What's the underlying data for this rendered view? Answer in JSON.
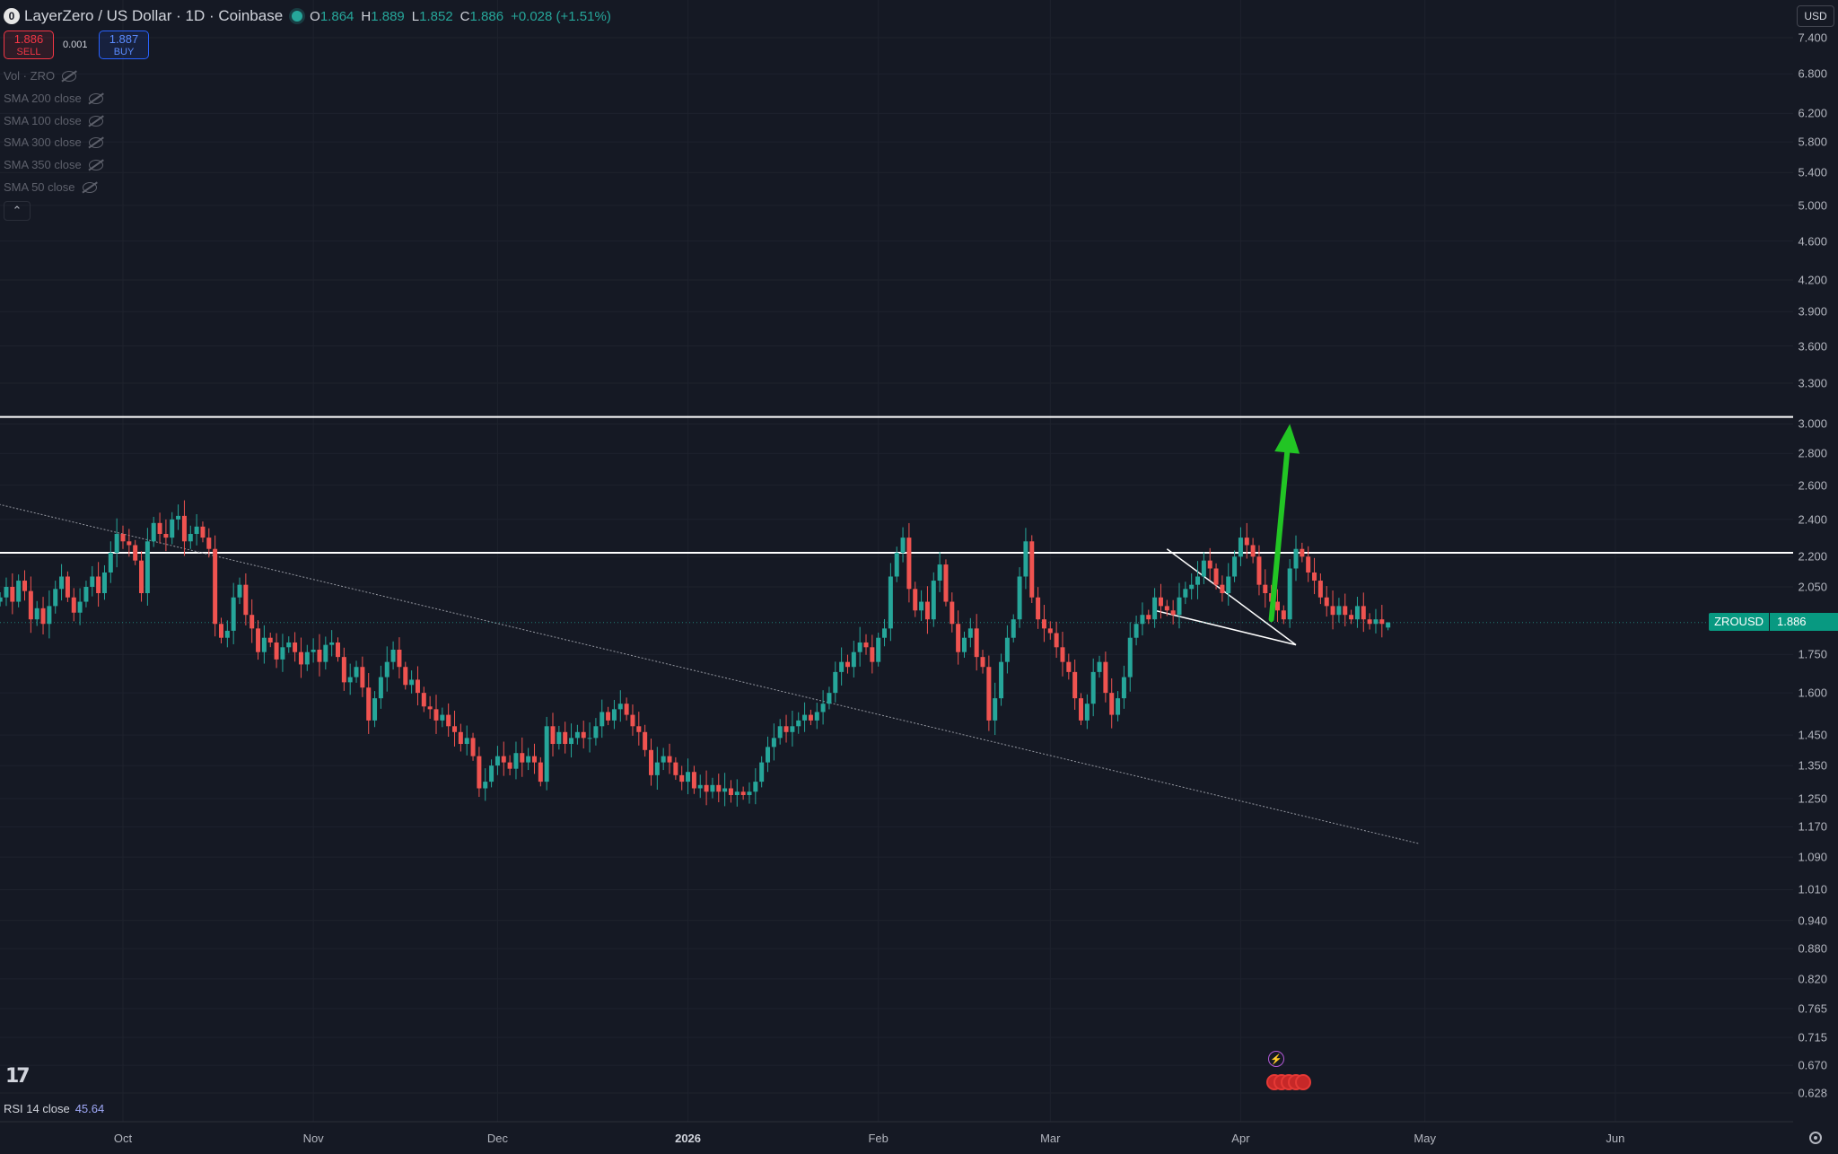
{
  "header": {
    "symbol_logo": "0",
    "title": "LayerZero / US Dollar · 1D · Coinbase",
    "o_label": "O",
    "o": "1.864",
    "h_label": "H",
    "h": "1.889",
    "l_label": "L",
    "l": "1.852",
    "c_label": "C",
    "c": "1.886",
    "change": "+0.028 (+1.51%)"
  },
  "trade": {
    "sell_price": "1.886",
    "sell_label": "SELL",
    "spread": "0.001",
    "buy_price": "1.887",
    "buy_label": "BUY"
  },
  "indicators": [
    {
      "label": "Vol · ZRO"
    },
    {
      "label": "SMA 200 close"
    },
    {
      "label": "SMA 100 close"
    },
    {
      "label": "SMA 300 close"
    },
    {
      "label": "SMA 350 close"
    },
    {
      "label": "SMA 50 close"
    }
  ],
  "collapse_icon": "chevron-up-icon",
  "currency": "USD",
  "price_tag": {
    "symbol": "ZROUSD",
    "price": "1.886"
  },
  "rsi": {
    "label": "RSI 14 close",
    "value": "45.64"
  },
  "colors": {
    "up": "#26a69a",
    "down": "#ef5350",
    "arrow": "#22c524",
    "background": "#151924"
  },
  "chart_data": {
    "type": "candlestick",
    "y_scale": "log",
    "ylim": [
      0.628,
      7.4
    ],
    "y_ticks": [
      "7.400",
      "6.800",
      "6.200",
      "5.800",
      "5.400",
      "5.000",
      "4.600",
      "4.200",
      "3.900",
      "3.600",
      "3.300",
      "3.000",
      "2.800",
      "2.600",
      "2.400",
      "2.200",
      "2.050",
      "1.750",
      "1.600",
      "1.450",
      "1.350",
      "1.250",
      "1.170",
      "1.090",
      "1.010",
      "0.940",
      "0.880",
      "0.820",
      "0.765",
      "0.715",
      "0.670",
      "0.628"
    ],
    "x_ticks": [
      {
        "label": "Oct",
        "date": "2025-10-01"
      },
      {
        "label": "Nov",
        "date": "2025-11-01"
      },
      {
        "label": "Dec",
        "date": "2025-12-01"
      },
      {
        "label": "2026",
        "date": "2026-01-01",
        "bold": true
      },
      {
        "label": "Feb",
        "date": "2026-02-01"
      },
      {
        "label": "Mar",
        "date": "2026-03-01"
      },
      {
        "label": "Apr",
        "date": "2026-04-01"
      },
      {
        "label": "May",
        "date": "2026-05-01"
      },
      {
        "label": "Jun",
        "date": "2026-06-01"
      }
    ],
    "candles_start": "2025-09-11",
    "closes": [
      2.0,
      2.05,
      1.98,
      2.08,
      2.03,
      1.9,
      1.95,
      1.88,
      1.96,
      2.04,
      2.1,
      2.0,
      1.93,
      1.98,
      2.05,
      2.1,
      2.02,
      2.12,
      2.22,
      2.32,
      2.28,
      2.26,
      2.18,
      2.02,
      2.28,
      2.38,
      2.32,
      2.3,
      2.4,
      2.42,
      2.28,
      2.32,
      2.36,
      2.3,
      2.24,
      1.88,
      1.82,
      1.85,
      2.0,
      2.06,
      1.92,
      1.86,
      1.76,
      1.82,
      1.8,
      1.73,
      1.78,
      1.8,
      1.76,
      1.71,
      1.76,
      1.77,
      1.72,
      1.79,
      1.8,
      1.74,
      1.64,
      1.66,
      1.7,
      1.62,
      1.5,
      1.58,
      1.66,
      1.72,
      1.77,
      1.7,
      1.63,
      1.65,
      1.6,
      1.55,
      1.54,
      1.5,
      1.52,
      1.48,
      1.46,
      1.42,
      1.44,
      1.38,
      1.28,
      1.3,
      1.35,
      1.38,
      1.36,
      1.34,
      1.39,
      1.36,
      1.38,
      1.36,
      1.3,
      1.48,
      1.42,
      1.46,
      1.42,
      1.44,
      1.46,
      1.44,
      1.44,
      1.48,
      1.53,
      1.5,
      1.54,
      1.56,
      1.52,
      1.48,
      1.46,
      1.4,
      1.32,
      1.36,
      1.38,
      1.36,
      1.32,
      1.3,
      1.33,
      1.28,
      1.29,
      1.27,
      1.29,
      1.27,
      1.28,
      1.26,
      1.27,
      1.26,
      1.27,
      1.3,
      1.36,
      1.41,
      1.44,
      1.48,
      1.46,
      1.48,
      1.5,
      1.52,
      1.5,
      1.53,
      1.56,
      1.6,
      1.68,
      1.72,
      1.7,
      1.76,
      1.8,
      1.78,
      1.72,
      1.82,
      1.86,
      2.1,
      2.22,
      2.3,
      2.04,
      1.94,
      1.98,
      1.9,
      2.08,
      2.16,
      1.98,
      1.88,
      1.76,
      1.82,
      1.86,
      1.74,
      1.7,
      1.5,
      1.58,
      1.72,
      1.82,
      1.9,
      2.1,
      2.28,
      2.0,
      1.9,
      1.86,
      1.84,
      1.78,
      1.72,
      1.68,
      1.58,
      1.5,
      1.56,
      1.68,
      1.72,
      1.6,
      1.52,
      1.58,
      1.66,
      1.82,
      1.88,
      1.92,
      1.9,
      2.0,
      1.96,
      1.94,
      1.92,
      2.0,
      2.04,
      2.06,
      2.1,
      2.18,
      2.14,
      2.06,
      2.02,
      2.1,
      2.2,
      2.3,
      2.26,
      2.2,
      2.06,
      2.02,
      1.98,
      1.94,
      1.9,
      2.14,
      2.24,
      2.2,
      2.12,
      2.08,
      2.0,
      1.96,
      1.92,
      1.96,
      1.92,
      1.9,
      1.96,
      1.9,
      1.88,
      1.9,
      1.88,
      1.886
    ],
    "last": {
      "o": 1.864,
      "h": 1.889,
      "l": 1.852,
      "c": 1.886
    },
    "horizontal_lines": [
      3.05,
      2.22
    ],
    "trend_line": {
      "from": {
        "date": "2025-08-31",
        "price": 2.58
      },
      "to": {
        "date": "2026-04-30",
        "price": 1.125
      }
    },
    "wedge": {
      "upper": {
        "from": {
          "date": "2026-03-20",
          "price": 2.24
        },
        "to": {
          "date": "2026-04-10",
          "price": 1.79
        }
      },
      "lower": {
        "from": {
          "date": "2026-03-18",
          "price": 1.94
        },
        "to": {
          "date": "2026-04-10",
          "price": 1.79
        }
      }
    },
    "arrow": {
      "from": {
        "date": "2026-04-06",
        "price": 1.9
      },
      "to": {
        "date": "2026-04-09",
        "price": 3.0
      }
    }
  }
}
